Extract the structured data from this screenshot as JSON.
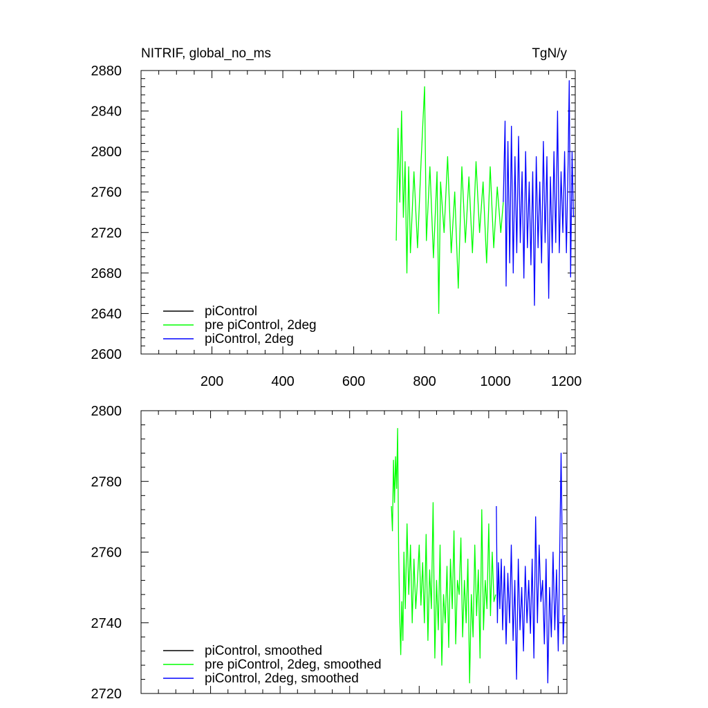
{
  "chart_data": [
    {
      "type": "line",
      "title": "NITRIF, global_no_ms",
      "units": "TgN/y",
      "xlim": [
        0,
        1225
      ],
      "ylim": [
        2600,
        2880
      ],
      "xticks": [
        200,
        400,
        600,
        800,
        1000,
        1200
      ],
      "xtick_labels": [
        "200",
        "400",
        "600",
        "800",
        "1000",
        "1200"
      ],
      "yticks": [
        2600,
        2640,
        2680,
        2720,
        2760,
        2800,
        2840,
        2880
      ],
      "ytick_labels": [
        "2600",
        "2640",
        "2680",
        "2720",
        "2760",
        "2800",
        "2840",
        "2880"
      ],
      "legend_position": "bottom-left",
      "legend": [
        {
          "label": "piControl",
          "color": "#000000"
        },
        {
          "label": "pre piControl, 2deg",
          "color": "#00ff00"
        },
        {
          "label": "piControl, 2deg",
          "color": "#0000ff"
        }
      ],
      "series": [
        {
          "name": "piControl",
          "color": "#000000",
          "x": [],
          "y": []
        },
        {
          "name": "pre piControl, 2deg",
          "color": "#00ff00",
          "x": [
            720,
            725,
            730,
            735,
            740,
            745,
            750,
            755,
            760,
            770,
            780,
            790,
            800,
            805,
            815,
            825,
            835,
            840,
            845,
            855,
            865,
            875,
            885,
            895,
            905,
            915,
            925,
            935,
            945,
            955,
            965,
            975,
            985,
            995,
            1005,
            1015,
            1022
          ],
          "y": [
            2712,
            2823,
            2750,
            2840,
            2735,
            2790,
            2680,
            2785,
            2700,
            2780,
            2705,
            2790,
            2864,
            2712,
            2785,
            2695,
            2780,
            2640,
            2770,
            2720,
            2795,
            2700,
            2760,
            2665,
            2785,
            2710,
            2775,
            2700,
            2790,
            2720,
            2770,
            2690,
            2785,
            2705,
            2765,
            2720,
            2750
          ]
        },
        {
          "name": "piControl, 2deg",
          "color": "#0000ff",
          "x": [
            1022,
            1027,
            1030,
            1035,
            1040,
            1045,
            1050,
            1055,
            1060,
            1065,
            1070,
            1075,
            1080,
            1085,
            1090,
            1095,
            1100,
            1105,
            1110,
            1115,
            1120,
            1125,
            1130,
            1135,
            1140,
            1145,
            1150,
            1155,
            1160,
            1165,
            1170,
            1175,
            1180,
            1185,
            1190,
            1195,
            1200,
            1205,
            1208,
            1212,
            1216,
            1220
          ],
          "y": [
            2750,
            2830,
            2667,
            2810,
            2690,
            2825,
            2680,
            2795,
            2700,
            2815,
            2710,
            2780,
            2675,
            2800,
            2705,
            2770,
            2688,
            2780,
            2648,
            2795,
            2705,
            2770,
            2690,
            2810,
            2710,
            2795,
            2655,
            2775,
            2700,
            2800,
            2710,
            2840,
            2700,
            2780,
            2720,
            2800,
            2700,
            2790,
            2870,
            2676,
            2800,
            2735
          ]
        }
      ]
    },
    {
      "type": "line",
      "title": "",
      "xlim": [
        0,
        1225
      ],
      "ylim": [
        2720,
        2800
      ],
      "xticks": [
        200,
        400,
        600,
        800,
        1000,
        1200
      ],
      "yticks": [
        2720,
        2740,
        2760,
        2780,
        2800
      ],
      "ytick_labels": [
        "2720",
        "2740",
        "2760",
        "2780",
        "2800"
      ],
      "legend_position": "bottom-left",
      "legend": [
        {
          "label": "piControl, smoothed",
          "color": "#000000"
        },
        {
          "label": "pre piControl, 2deg, smoothed",
          "color": "#00ff00"
        },
        {
          "label": "piControl, 2deg, smoothed",
          "color": "#0000ff"
        }
      ],
      "series": [
        {
          "name": "piControl, smoothed",
          "color": "#000000",
          "x": [],
          "y": []
        },
        {
          "name": "pre piControl, 2deg, smoothed",
          "color": "#00ff00",
          "x": [
            720,
            723,
            726,
            729,
            732,
            735,
            738,
            741,
            744,
            747,
            750,
            753,
            756,
            760,
            765,
            770,
            775,
            780,
            785,
            790,
            795,
            800,
            805,
            810,
            815,
            820,
            825,
            830,
            835,
            840,
            845,
            850,
            855,
            860,
            865,
            870,
            875,
            880,
            885,
            890,
            895,
            900,
            905,
            910,
            915,
            920,
            925,
            930,
            935,
            940,
            945,
            950,
            955,
            960,
            965,
            970,
            975,
            980,
            985,
            990,
            995,
            1000,
            1005,
            1010,
            1015,
            1020
          ],
          "y": [
            2773,
            2766,
            2786,
            2774,
            2787,
            2778,
            2795,
            2760,
            2742,
            2731,
            2746,
            2735,
            2760,
            2744,
            2768,
            2748,
            2762,
            2740,
            2758,
            2744,
            2752,
            2762,
            2745,
            2757,
            2740,
            2765,
            2735,
            2755,
            2744,
            2774,
            2730,
            2752,
            2738,
            2762,
            2728,
            2748,
            2740,
            2756,
            2733,
            2758,
            2744,
            2766,
            2734,
            2752,
            2748,
            2764,
            2736,
            2752,
            2740,
            2758,
            2723,
            2748,
            2736,
            2762,
            2742,
            2755,
            2730,
            2772,
            2738,
            2752,
            2744,
            2768,
            2742,
            2760,
            2746,
            2748
          ]
        },
        {
          "name": "piControl, 2deg, smoothed",
          "color": "#0000ff",
          "x": [
            1022,
            1025,
            1028,
            1032,
            1036,
            1040,
            1045,
            1050,
            1055,
            1060,
            1065,
            1070,
            1075,
            1080,
            1085,
            1090,
            1095,
            1100,
            1105,
            1110,
            1115,
            1120,
            1125,
            1130,
            1135,
            1140,
            1145,
            1150,
            1155,
            1160,
            1165,
            1170,
            1175,
            1180,
            1185,
            1190,
            1195,
            1200,
            1205,
            1208,
            1211,
            1214,
            1217,
            1220
          ],
          "y": [
            2773,
            2740,
            2757,
            2744,
            2758,
            2738,
            2756,
            2734,
            2754,
            2740,
            2762,
            2735,
            2752,
            2724,
            2758,
            2738,
            2750,
            2732,
            2756,
            2740,
            2752,
            2737,
            2758,
            2730,
            2770,
            2740,
            2762,
            2746,
            2752,
            2734,
            2758,
            2723,
            2750,
            2736,
            2760,
            2738,
            2755,
            2732,
            2765,
            2788,
            2764,
            2734,
            2742,
            2742
          ]
        }
      ]
    }
  ]
}
